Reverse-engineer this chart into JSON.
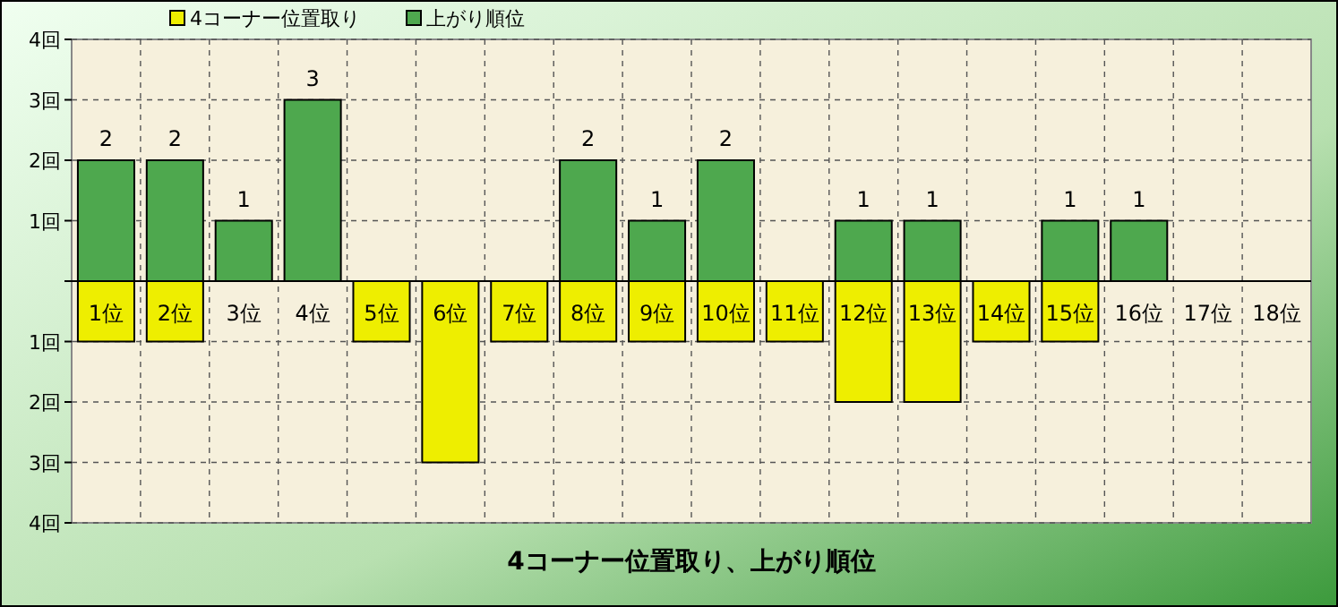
{
  "chart_data": {
    "type": "bar",
    "title": "4コーナー位置取り、上がり順位",
    "categories": [
      "1位",
      "2位",
      "3位",
      "4位",
      "5位",
      "6位",
      "7位",
      "8位",
      "9位",
      "10位",
      "11位",
      "12位",
      "13位",
      "14位",
      "15位",
      "16位",
      "17位",
      "18位"
    ],
    "series": [
      {
        "name": "4コーナー位置取り",
        "color": "#eeee00",
        "values": [
          -1,
          -1,
          0,
          0,
          -1,
          -3,
          -1,
          -1,
          -1,
          -1,
          -1,
          -2,
          -2,
          -1,
          -1,
          0,
          0,
          0
        ]
      },
      {
        "name": "上がり順位",
        "color": "#4ea84e",
        "values": [
          2,
          2,
          1,
          3,
          0,
          0,
          0,
          2,
          1,
          2,
          0,
          1,
          1,
          0,
          1,
          1,
          0,
          0
        ],
        "value_labels": [
          "2",
          "2",
          "1",
          "3",
          null,
          null,
          null,
          "2",
          "1",
          "2",
          null,
          "1",
          "1",
          null,
          "1",
          "1",
          null,
          null
        ]
      }
    ],
    "ylim": [
      -4,
      4
    ],
    "yticks": [
      {
        "value": 4,
        "label": "4回"
      },
      {
        "value": 3,
        "label": "3回"
      },
      {
        "value": 2,
        "label": "2回"
      },
      {
        "value": 1,
        "label": "1回"
      },
      {
        "value": 0,
        "label": null
      },
      {
        "value": -1,
        "label": "1回"
      },
      {
        "value": -2,
        "label": "2回"
      },
      {
        "value": -3,
        "label": "3回"
      },
      {
        "value": -4,
        "label": "4回"
      }
    ],
    "grid": true,
    "legend": "top left"
  }
}
